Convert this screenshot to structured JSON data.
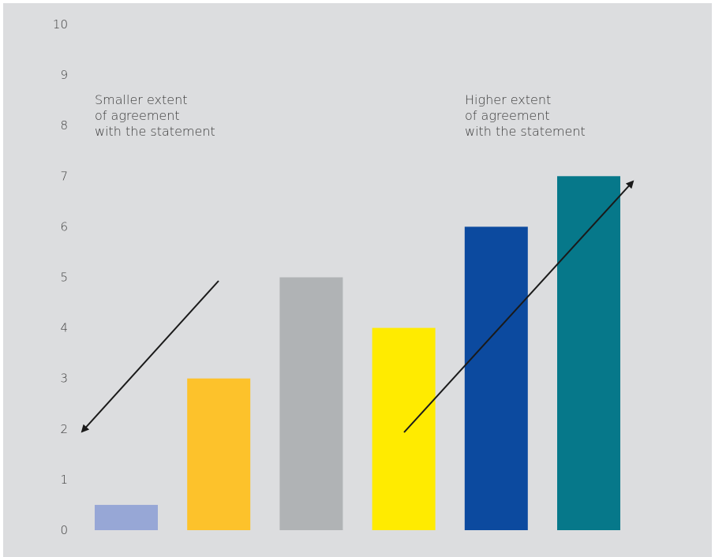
{
  "chart_data": {
    "type": "bar",
    "categories": [
      "",
      "",
      "",
      "",
      "",
      ""
    ],
    "values": [
      0.5,
      3,
      5,
      4,
      6,
      7
    ],
    "colors": [
      "#97a7d6",
      "#fdc22b",
      "#b0b3b5",
      "#ffeb00",
      "#0c4a9f",
      "#06788a"
    ],
    "ylim": [
      0,
      10
    ],
    "yticks": [
      "0",
      "1",
      "2",
      "3",
      "4",
      "5",
      "6",
      "7",
      "8",
      "9",
      "10"
    ],
    "grid": false,
    "background": "#dcdddf",
    "annotations": [
      {
        "lines": [
          "Smaller extent",
          "of agreement",
          "with the statement"
        ],
        "arrow": "down-left"
      },
      {
        "lines": [
          "Higher extent",
          "of agreement",
          "with the statement"
        ],
        "arrow": "up-right"
      }
    ]
  }
}
